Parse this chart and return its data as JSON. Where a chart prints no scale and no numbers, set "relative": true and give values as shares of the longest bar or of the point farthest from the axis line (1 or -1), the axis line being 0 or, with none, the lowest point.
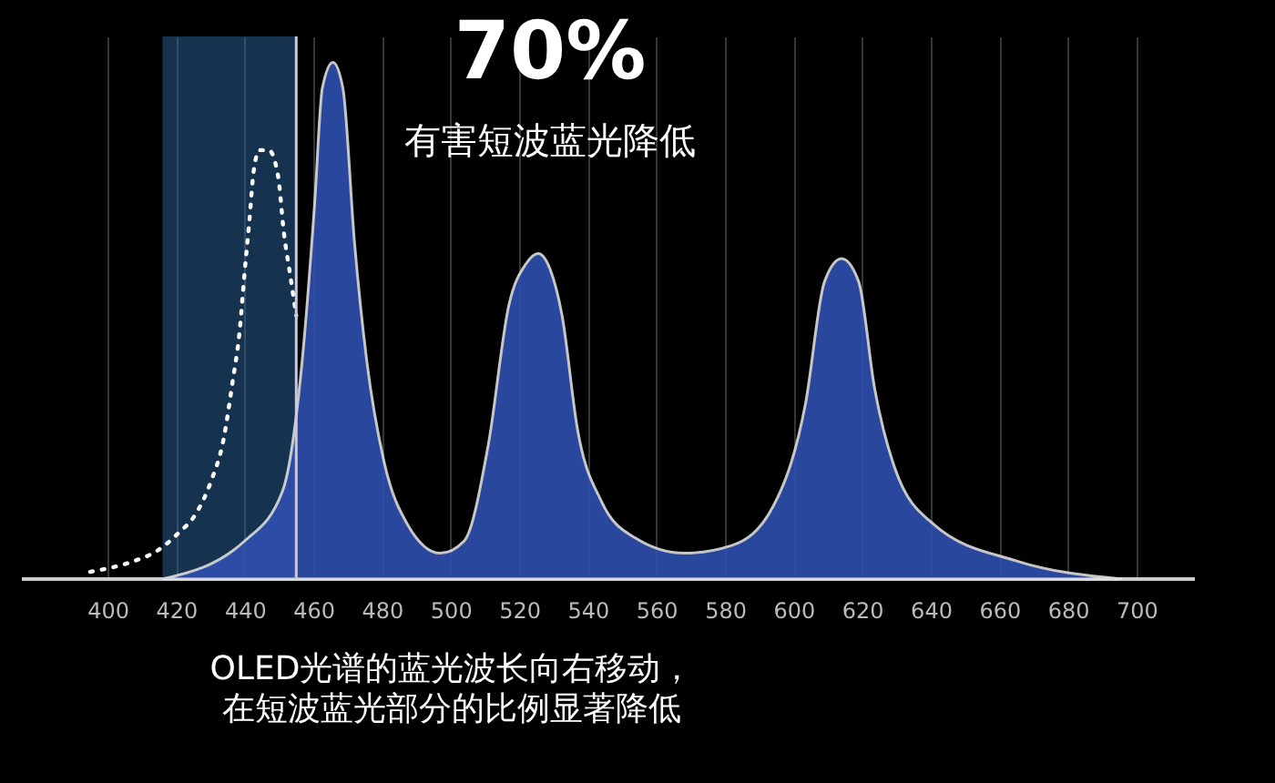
{
  "chart_data": {
    "type": "area",
    "relative": true,
    "xlim": [
      375,
      717
    ],
    "xticks": [
      400,
      420,
      440,
      460,
      480,
      500,
      520,
      540,
      560,
      580,
      600,
      620,
      640,
      660,
      680,
      700
    ],
    "grid": "x",
    "series": [
      {
        "color": "#2f4fb0",
        "x": [
          416,
          440,
          451,
          456.7,
          460.4,
          462.6,
          465.7,
          468.6,
          472,
          475.6,
          480.5,
          487.5,
          497,
          504,
          511,
          517,
          522,
          525.5,
          529,
          532.5,
          537,
          544,
          553.7,
          568,
          582,
          594,
          603.5,
          609,
          614,
          619,
          623.6,
          629.5,
          641,
          665,
          695.7
        ],
        "values": [
          0,
          0.074,
          0.17,
          0.42,
          0.73,
          0.95,
          1.0,
          0.95,
          0.65,
          0.42,
          0.23,
          0.105,
          0.05,
          0.074,
          0.26,
          0.53,
          0.61,
          0.63,
          0.6,
          0.51,
          0.29,
          0.15,
          0.08,
          0.05,
          0.065,
          0.14,
          0.34,
          0.575,
          0.62,
          0.575,
          0.37,
          0.215,
          0.105,
          0.035,
          0
        ]
      },
      {
        "type": "line",
        "line_style": "dotted",
        "color": "#ffffff",
        "x": [
          394.9,
          407.3,
          414.3,
          420.5,
          425.8,
          430.2,
          433.8,
          436.4,
          438.5,
          439.9,
          441.3,
          442.6,
          444.3,
          447,
          449.7,
          451.4,
          453.2,
          455
        ],
        "values": [
          0.014,
          0.034,
          0.054,
          0.088,
          0.127,
          0.19,
          0.27,
          0.38,
          0.48,
          0.59,
          0.69,
          0.79,
          0.83,
          0.83,
          0.78,
          0.67,
          0.59,
          0.51
        ]
      }
    ],
    "ref_lines": [
      {
        "axis": "x",
        "value": 455,
        "color": "#c8c8e0"
      }
    ],
    "bands": [
      {
        "axis": "x",
        "from": 416,
        "to": 455,
        "color": "#2f6fb0"
      }
    ],
    "annotations": [
      "70%",
      "有害短波蓝光降低",
      "OLED光谱的蓝光波长向右移动，",
      "在短波蓝光部分的比例显著降低"
    ]
  }
}
